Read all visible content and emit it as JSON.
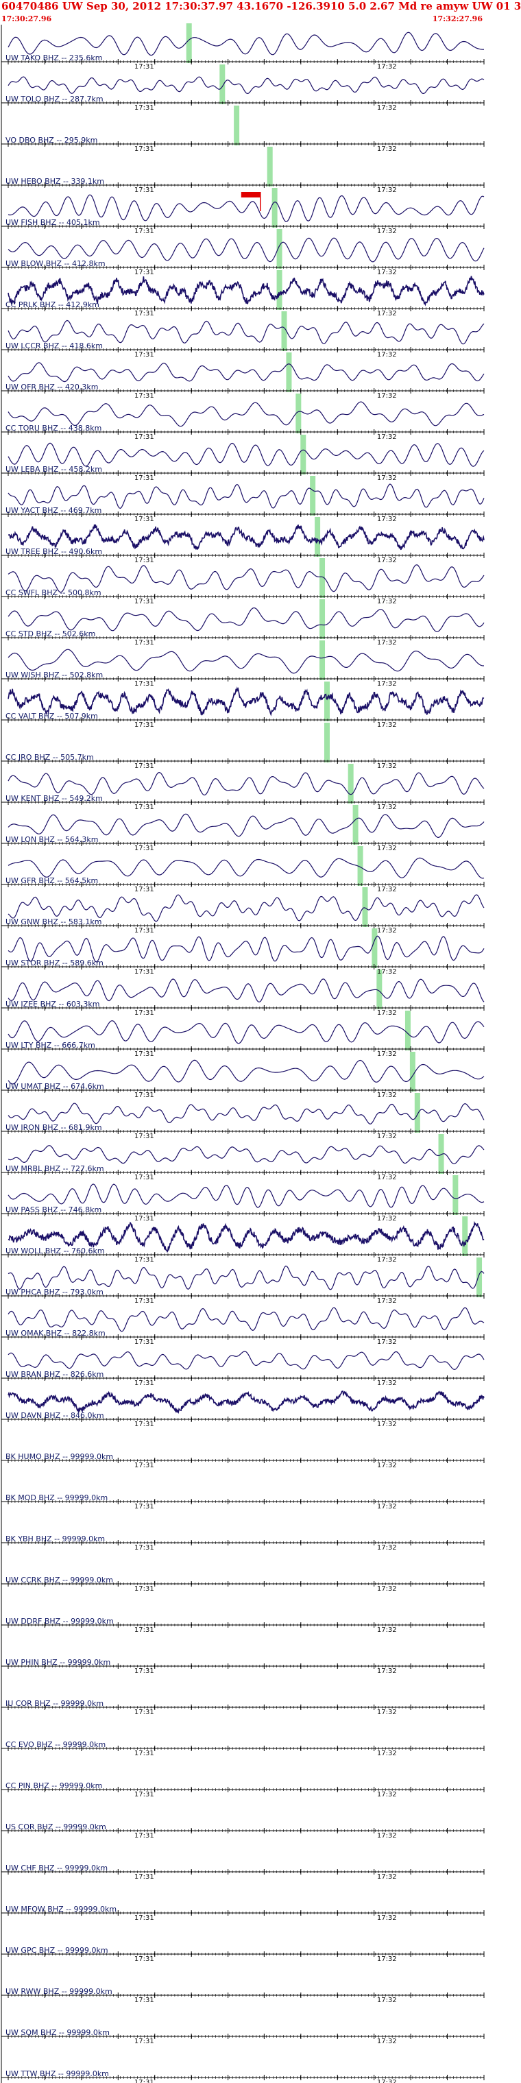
{
  "header": {
    "title": "60470486 UW Sep 30, 2012 17:30:37.97    43.1670 -126.3910   5.0 2.67 Md re amyw UW 01    3",
    "start_time": "17:30:27.96",
    "end_time": "17:32:27.96"
  },
  "time_ticks": [
    "17:31",
    "17:32"
  ],
  "colors": {
    "trace": "#1a0f66",
    "axis": "#000000",
    "pick": "#9fe3a5",
    "marker": "#e00000"
  },
  "traces": [
    {
      "label": "UW TAKO BHZ -- 235.6km",
      "amp": 0.7,
      "wave": "smooth",
      "pick": 0.38
    },
    {
      "label": "UW TOLO BHZ -- 287.7km",
      "amp": 0.5,
      "wave": "smooth",
      "pick": 0.45
    },
    {
      "label": "VO DBO BHZ -- 295.9km",
      "amp": 0.0,
      "wave": "flat",
      "pick": 0.48
    },
    {
      "label": "UW HEBO BHZ -- 339.1km",
      "amp": 0.0,
      "wave": "flat",
      "pick": 0.55
    },
    {
      "label": "UW FISH BHZ -- 405.1km",
      "amp": 0.8,
      "wave": "smooth",
      "pick": 0.56
    },
    {
      "label": "UW BLOW BHZ -- 412.8km",
      "amp": 0.7,
      "wave": "smooth",
      "pick": 0.57
    },
    {
      "label": "CC PRLK BHZ -- 412.9km",
      "amp": 0.7,
      "wave": "noisy",
      "pick": 0.57
    },
    {
      "label": "UW LCCR BHZ -- 418.6km",
      "amp": 0.7,
      "wave": "smooth",
      "pick": 0.58
    },
    {
      "label": "UW OFR BHZ -- 420.3km",
      "amp": 0.6,
      "wave": "smooth",
      "pick": 0.59
    },
    {
      "label": "CC TORU BHZ -- 438.8km",
      "amp": 0.7,
      "wave": "smooth",
      "pick": 0.61
    },
    {
      "label": "UW LEBA BHZ -- 458.2km",
      "amp": 0.7,
      "wave": "smooth",
      "pick": 0.62
    },
    {
      "label": "UW YACT BHZ -- 469.7km",
      "amp": 0.7,
      "wave": "smooth",
      "pick": 0.64
    },
    {
      "label": "UW TREE BHZ -- 490.6km",
      "amp": 0.6,
      "wave": "noisy",
      "pick": 0.65
    },
    {
      "label": "CC SWFL BHZ -- 500.8km",
      "amp": 0.8,
      "wave": "smooth",
      "pick": 0.66
    },
    {
      "label": "CC STD BHZ -- 502.6km",
      "amp": 0.7,
      "wave": "smooth",
      "pick": 0.66
    },
    {
      "label": "UW WISH BHZ -- 502.8km",
      "amp": 0.7,
      "wave": "smooth",
      "pick": 0.66
    },
    {
      "label": "CC VALT BHZ -- 507.9km",
      "amp": 0.7,
      "wave": "noisy",
      "pick": 0.67
    },
    {
      "label": "CC JRO BHZ -- 505.7km",
      "amp": 0.0,
      "wave": "flat",
      "pick": 0.67
    },
    {
      "label": "UW KENT BHZ -- 549.2km",
      "amp": 0.7,
      "wave": "smooth",
      "pick": 0.72
    },
    {
      "label": "UW LON BHZ -- 564.3km",
      "amp": 0.7,
      "wave": "smooth",
      "pick": 0.73
    },
    {
      "label": "UW GFR BHZ -- 564.5km",
      "amp": 0.7,
      "wave": "smooth",
      "pick": 0.74
    },
    {
      "label": "UW GNW BHZ -- 583.1km",
      "amp": 0.8,
      "wave": "smooth",
      "pick": 0.75
    },
    {
      "label": "UW STOR BHZ -- 589.6km",
      "amp": 0.8,
      "wave": "smooth",
      "pick": 0.77
    },
    {
      "label": "UW IZEE BHZ -- 603.3km",
      "amp": 0.7,
      "wave": "smooth",
      "pick": 0.78
    },
    {
      "label": "UW LTY BHZ -- 666.7km",
      "amp": 0.7,
      "wave": "smooth",
      "pick": 0.84
    },
    {
      "label": "UW UMAT BHZ -- 674.6km",
      "amp": 0.7,
      "wave": "smooth",
      "pick": 0.85
    },
    {
      "label": "UW IRON BHZ -- 681.9km",
      "amp": 0.6,
      "wave": "smooth",
      "pick": 0.86
    },
    {
      "label": "UW MRBL BHZ -- 727.6km",
      "amp": 0.6,
      "wave": "smooth",
      "pick": 0.91
    },
    {
      "label": "UW PASS BHZ -- 746.8km",
      "amp": 0.7,
      "wave": "smooth",
      "pick": 0.94
    },
    {
      "label": "UW WOLL BHZ -- 760.6km",
      "amp": 0.7,
      "wave": "noisy",
      "pick": 0.96
    },
    {
      "label": "UW PHCA BHZ -- 793.0km",
      "amp": 0.7,
      "wave": "smooth",
      "pick": 0.99
    },
    {
      "label": "UW OMAK BHZ -- 822.8km",
      "amp": 0.7,
      "wave": "smooth",
      "pick": null
    },
    {
      "label": "UW BRAN BHZ -- 826.6km",
      "amp": 0.6,
      "wave": "smooth",
      "pick": null
    },
    {
      "label": "UW DAVN BHZ -- 846.0km",
      "amp": 0.5,
      "wave": "noisy",
      "pick": null
    },
    {
      "label": "BK HUMO BHZ -- 99999.0km",
      "amp": 0.0,
      "wave": "flat",
      "pick": null
    },
    {
      "label": "BK MOD BHZ -- 99999.0km",
      "amp": 0.0,
      "wave": "flat",
      "pick": null
    },
    {
      "label": "BK YBH BHZ -- 99999.0km",
      "amp": 0.0,
      "wave": "flat",
      "pick": null
    },
    {
      "label": "UW CCRK BHZ -- 99999.0km",
      "amp": 0.0,
      "wave": "flat",
      "pick": null
    },
    {
      "label": "UW DDRF BHZ -- 99999.0km",
      "amp": 0.0,
      "wave": "flat",
      "pick": null
    },
    {
      "label": "UW PHIN BHZ -- 99999.0km",
      "amp": 0.0,
      "wave": "flat",
      "pick": null
    },
    {
      "label": "IU COR BHZ -- 99999.0km",
      "amp": 0.0,
      "wave": "flat",
      "pick": null
    },
    {
      "label": "CC EVO BHZ -- 99999.0km",
      "amp": 0.0,
      "wave": "flat",
      "pick": null
    },
    {
      "label": "CC PIN BHZ -- 99999.0km",
      "amp": 0.0,
      "wave": "flat",
      "pick": null
    },
    {
      "label": "US COR BHZ -- 99999.0km",
      "amp": 0.0,
      "wave": "flat",
      "pick": null
    },
    {
      "label": "UW CHF BHZ -- 99999.0km",
      "amp": 0.0,
      "wave": "flat",
      "pick": null
    },
    {
      "label": "UW MFOW BHZ -- 99999.0km",
      "amp": 0.0,
      "wave": "flat",
      "pick": null
    },
    {
      "label": "UW GPC BHZ -- 99999.0km",
      "amp": 0.0,
      "wave": "flat",
      "pick": null
    },
    {
      "label": "UW RWW BHZ -- 99999.0km",
      "amp": 0.0,
      "wave": "flat",
      "pick": null
    },
    {
      "label": "UW SQM BHZ -- 99999.0km",
      "amp": 0.0,
      "wave": "flat",
      "pick": null
    },
    {
      "label": "UW TTW BHZ -- 99999.0km",
      "amp": 0.0,
      "wave": "flat",
      "pick": null
    }
  ],
  "origin_marker": {
    "trace_index": 4,
    "time_fraction": 0.53
  }
}
